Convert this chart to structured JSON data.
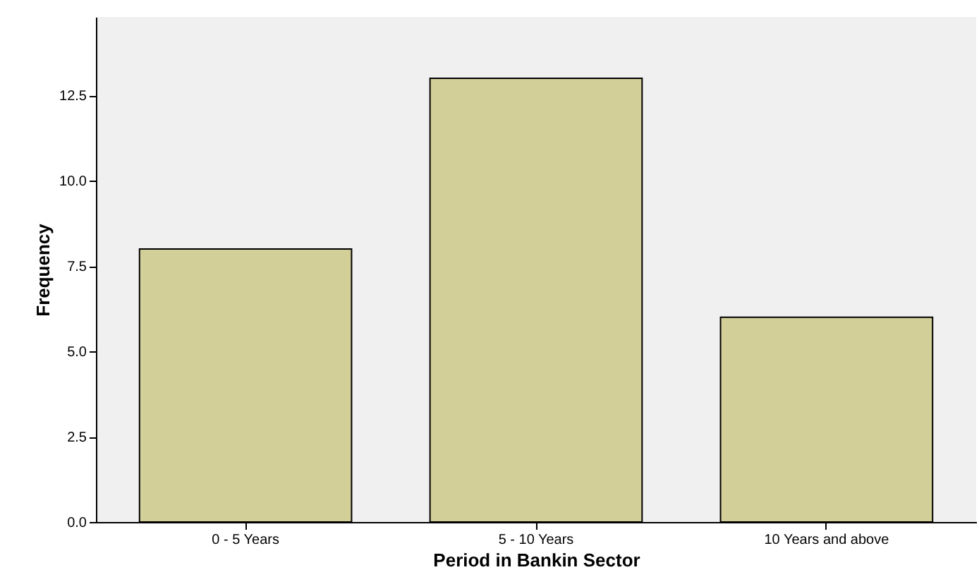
{
  "chart_data": {
    "type": "bar",
    "xlabel": "Period in Bankin Sector",
    "ylabel": "Frequency",
    "categories": [
      "0 - 5 Years",
      "5 - 10 Years",
      "10 Years and above"
    ],
    "values": [
      8,
      13,
      6
    ],
    "color": "#d3cf99",
    "ylim": [
      0,
      14.8
    ],
    "yticks": [
      {
        "value": 0,
        "label": "0.0"
      },
      {
        "value": 2.5,
        "label": "2.5"
      },
      {
        "value": 5,
        "label": "5.0"
      },
      {
        "value": 7.5,
        "label": "7.5"
      },
      {
        "value": 10,
        "label": "10.0"
      },
      {
        "value": 12.5,
        "label": "12.5"
      }
    ],
    "grid": false
  }
}
